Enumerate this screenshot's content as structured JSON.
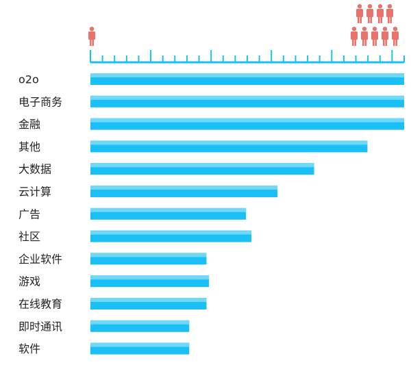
{
  "chart_data": {
    "type": "bar",
    "orientation": "horizontal",
    "categories": [
      "o2o",
      "电子商务",
      "金融",
      "其他",
      "大数据",
      "云计算",
      "广告",
      "社区",
      "企业软件",
      "游戏",
      "在线教育",
      "即时通讯",
      "软件"
    ],
    "values": [
      100,
      100,
      100,
      88.3,
      71.3,
      59.6,
      49.6,
      51.3,
      37.0,
      37.8,
      37.0,
      31.5,
      31.5
    ],
    "xlim": [
      0,
      100
    ],
    "title": "",
    "xlabel": "",
    "ylabel": "",
    "grid": false,
    "legend": "none",
    "scale_icons": {
      "icon": "person-icon",
      "min_people": 1,
      "max_people": 10
    },
    "colors": {
      "bar": "#1ac0f5",
      "bar_highlight": "#6fd7f7",
      "axis": "#1ac0f5",
      "person": "#e8736a"
    }
  }
}
